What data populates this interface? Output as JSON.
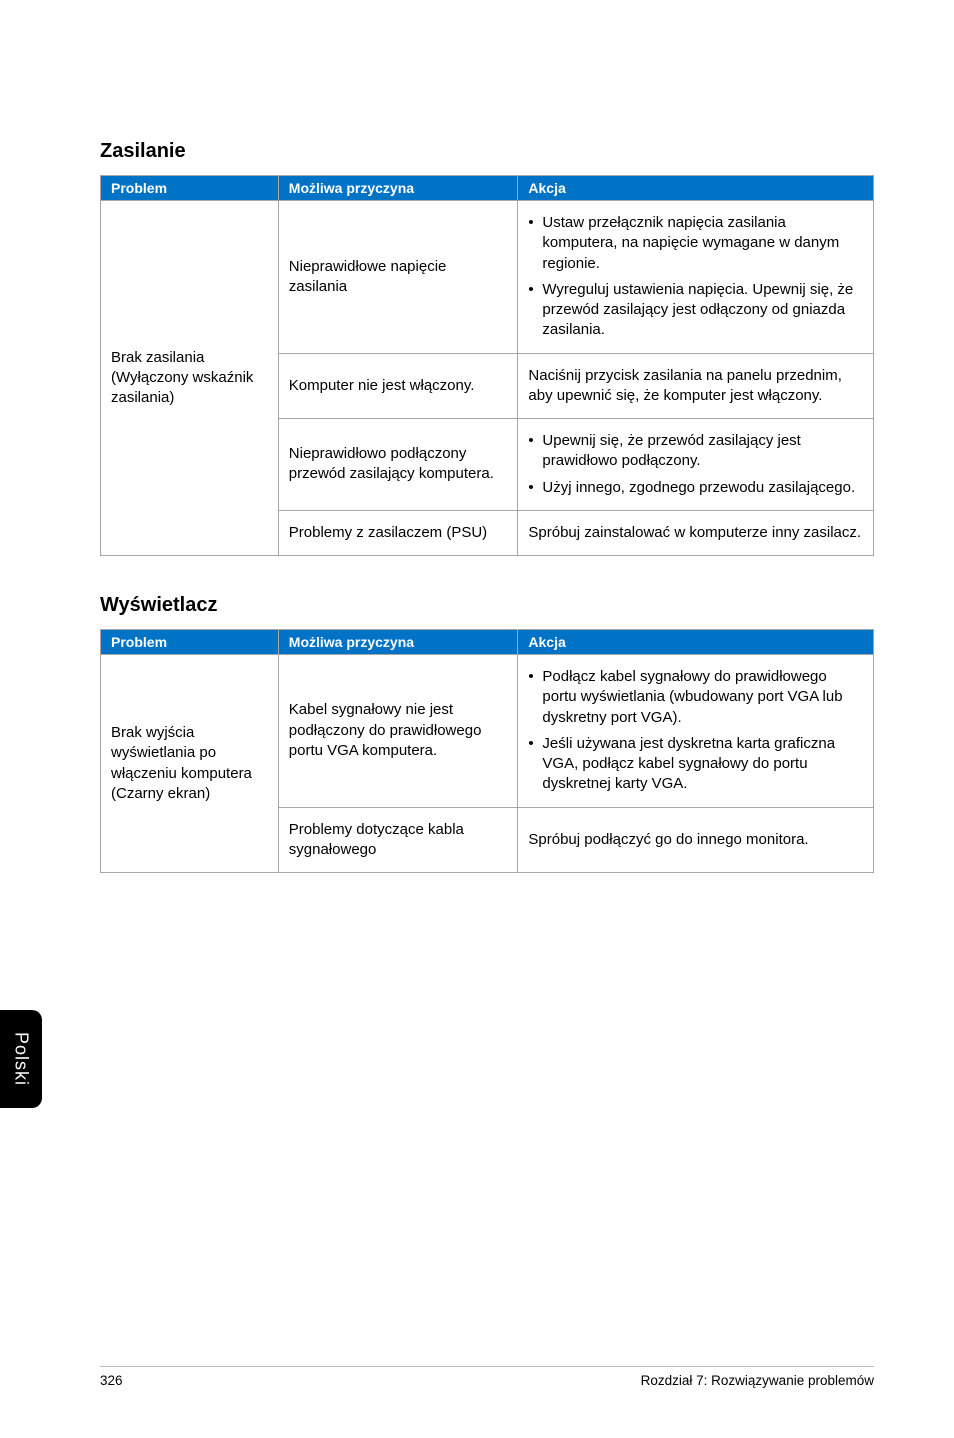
{
  "colors": {
    "header_bg": "#0073c6",
    "header_text": "#ffffff",
    "border": "#a6a6a6",
    "page_bg": "#ffffff",
    "body_text": "#000000",
    "tab_bg": "#000000",
    "tab_text": "#ffffff",
    "footer_rule": "#bcbcbc"
  },
  "typography": {
    "section_title_pt": 20,
    "table_header_pt": 14,
    "table_body_pt": 15,
    "footer_pt": 13.5,
    "side_tab_pt": 18
  },
  "sections": {
    "power": {
      "title": "Zasilanie",
      "columns": {
        "problem": "Problem",
        "cause": "Możliwa przyczyna",
        "action": "Akcja"
      },
      "problem": "Brak zasilania (Wyłączony wskaźnik zasilania)",
      "rows": [
        {
          "cause": "Nieprawidłowe napięcie zasilania",
          "actions": [
            "Ustaw przełącznik napięcia zasilania komputera, na napięcie wymagane w danym regionie.",
            "Wyreguluj ustawienia napięcia. Upewnij się, że przewód zasilający jest odłączony od gniazda zasilania."
          ]
        },
        {
          "cause": "Komputer nie jest włączony.",
          "action_text": "Naciśnij przycisk zasilania na panelu przednim, aby upewnić się, że komputer jest włączony."
        },
        {
          "cause": "Nieprawidłowo podłączony przewód zasilający komputera.",
          "actions": [
            "Upewnij się, że przewód zasilający jest prawidłowo podłączony.",
            "Użyj innego, zgodnego przewodu zasilającego."
          ]
        },
        {
          "cause": "Problemy z zasilaczem (PSU)",
          "action_text": "Spróbuj zainstalować w komputerze inny zasilacz."
        }
      ]
    },
    "display": {
      "title": "Wyświetlacz",
      "columns": {
        "problem": "Problem",
        "cause": "Możliwa przyczyna",
        "action": "Akcja"
      },
      "problem": "Brak wyjścia wyświetlania po włączeniu komputera (Czarny ekran)",
      "rows": [
        {
          "cause": "Kabel sygnałowy nie jest podłączony do prawidłowego portu VGA komputera.",
          "actions": [
            "Podłącz kabel sygnałowy do prawidłowego portu wyświetlania (wbudowany port VGA lub dyskretny port VGA).",
            "Jeśli używana jest dyskretna karta graficzna VGA, podłącz kabel sygnałowy do portu dyskretnej karty VGA."
          ]
        },
        {
          "cause": "Problemy dotyczące kabla sygnałowego",
          "action_text": "Spróbuj podłączyć go do innego monitora."
        }
      ]
    }
  },
  "side_tab": "Polski",
  "footer": {
    "page_number": "326",
    "chapter": "Rozdział 7: Rozwiązywanie problemów"
  }
}
